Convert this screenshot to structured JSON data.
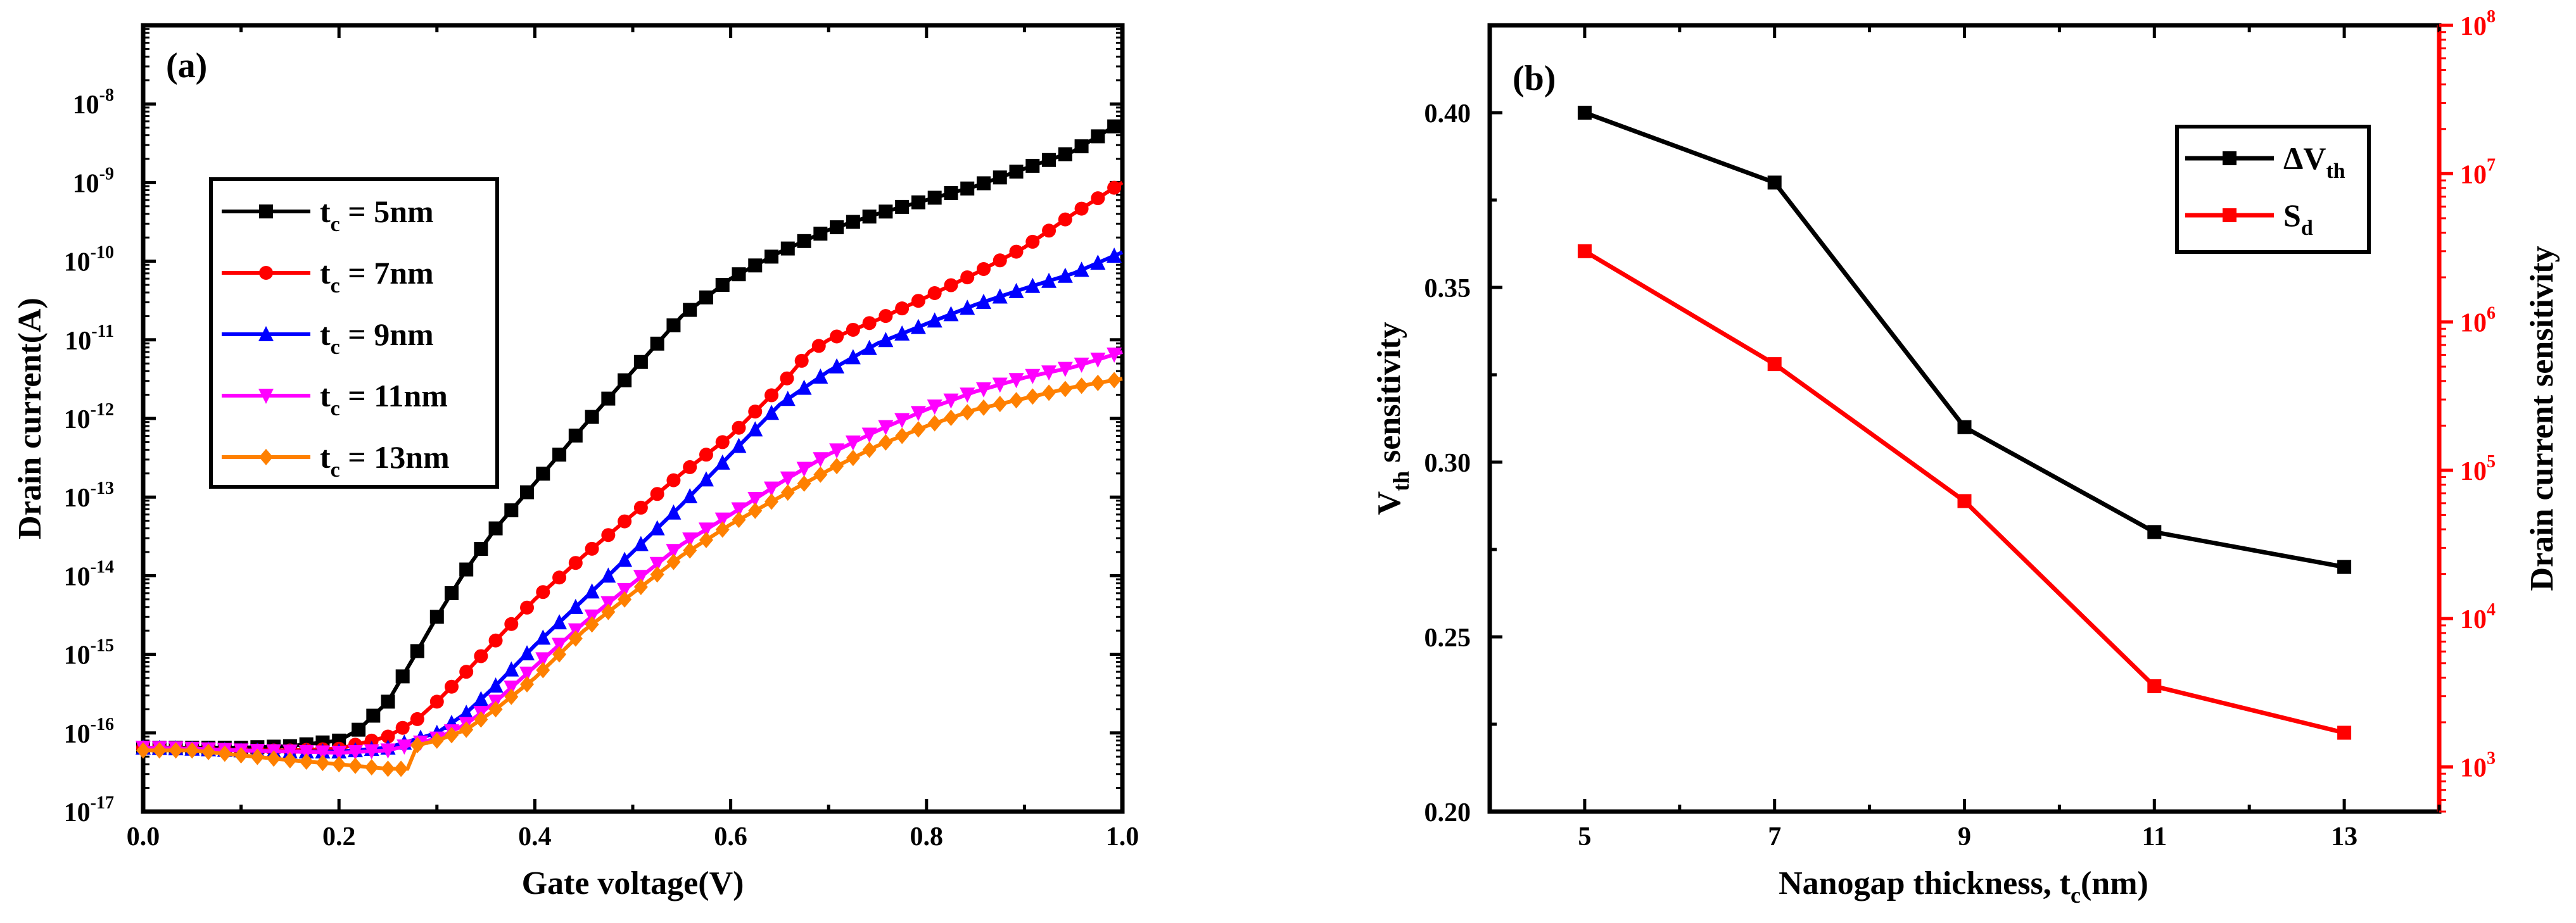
{
  "chart_data": [
    {
      "type": "line",
      "panel_label": "(a)",
      "xlabel": "Gate voltage(V)",
      "ylabel": "Drain current(A)",
      "yscale": "log",
      "xlim": [
        0.0,
        1.0
      ],
      "ylim": [
        1e-17,
        1e-07
      ],
      "xticks": [
        "0.0",
        "0.2",
        "0.4",
        "0.6",
        "0.8",
        "1.0"
      ],
      "yticks": [
        {
          "base": "10",
          "exp": "-17"
        },
        {
          "base": "10",
          "exp": "-16"
        },
        {
          "base": "10",
          "exp": "-15"
        },
        {
          "base": "10",
          "exp": "-14"
        },
        {
          "base": "10",
          "exp": "-13"
        },
        {
          "base": "10",
          "exp": "-12"
        },
        {
          "base": "10",
          "exp": "-11"
        },
        {
          "base": "10",
          "exp": "-10"
        },
        {
          "base": "10",
          "exp": "-9"
        },
        {
          "base": "10",
          "exp": "-8"
        }
      ],
      "legend": {
        "placement": "center-left"
      },
      "series": [
        {
          "name": "tc = 5nm",
          "legend_main": "t",
          "legend_sub": "c",
          "legend_rest": " = 5nm",
          "color": "#000000",
          "marker": "square",
          "x": [
            0.0,
            0.05,
            0.1,
            0.15,
            0.2,
            0.22,
            0.25,
            0.28,
            0.3,
            0.33,
            0.36,
            0.4,
            0.45,
            0.5,
            0.55,
            0.6,
            0.65,
            0.7,
            0.75,
            0.8,
            0.85,
            0.9,
            0.95,
            1.0
          ],
          "y": [
            6.5e-17,
            6.5e-17,
            6.5e-17,
            6.8e-17,
            8e-17,
            1.1e-16,
            2.5e-16,
            1.1e-15,
            3e-15,
            1.2e-14,
            4e-14,
            1.5e-13,
            8e-13,
            4e-12,
            2e-11,
            6e-11,
            1.3e-10,
            2.5e-10,
            4e-10,
            6e-10,
            9e-10,
            1.5e-09,
            2.5e-09,
            6e-09
          ]
        },
        {
          "name": "tc = 7nm",
          "legend_main": "t",
          "legend_sub": "c",
          "legend_rest": " = 7nm",
          "color": "#ff0000",
          "marker": "circle",
          "x": [
            0.0,
            0.05,
            0.1,
            0.15,
            0.2,
            0.25,
            0.28,
            0.3,
            0.33,
            0.36,
            0.4,
            0.45,
            0.5,
            0.55,
            0.6,
            0.65,
            0.68,
            0.7,
            0.75,
            0.8,
            0.85,
            0.9,
            0.95,
            1.0
          ],
          "y": [
            6.5e-17,
            6.3e-17,
            6e-17,
            6e-17,
            6.3e-17,
            9e-17,
            1.5e-16,
            2.5e-16,
            6e-16,
            1.5e-15,
            5e-15,
            1.8e-14,
            6e-14,
            2e-13,
            6e-13,
            2.5e-12,
            7e-12,
            1e-11,
            1.8e-11,
            3.5e-11,
            7e-11,
            1.5e-10,
            4e-10,
            1e-09
          ]
        },
        {
          "name": "tc = 9nm",
          "legend_main": "t",
          "legend_sub": "c",
          "legend_rest": " = 9nm",
          "color": "#0000ff",
          "marker": "triangle-up",
          "x": [
            0.0,
            0.05,
            0.1,
            0.15,
            0.2,
            0.25,
            0.3,
            0.33,
            0.36,
            0.4,
            0.45,
            0.5,
            0.55,
            0.6,
            0.65,
            0.7,
            0.75,
            0.8,
            0.85,
            0.9,
            0.95,
            1.0
          ],
          "y": [
            6.5e-17,
            6.3e-17,
            6e-17,
            5.8e-17,
            5.8e-17,
            6.5e-17,
            1e-16,
            1.8e-16,
            4e-16,
            1.3e-15,
            5e-15,
            2e-14,
            8e-14,
            3.5e-13,
            1.5e-12,
            4e-12,
            9e-12,
            1.6e-11,
            2.8e-11,
            4.5e-11,
            7e-11,
            1.3e-10
          ]
        },
        {
          "name": "tc = 11nm",
          "legend_main": "t",
          "legend_sub": "c",
          "legend_rest": " = 11nm",
          "color": "#ff00ff",
          "marker": "triangle-down",
          "x": [
            0.0,
            0.05,
            0.1,
            0.15,
            0.2,
            0.25,
            0.3,
            0.33,
            0.36,
            0.4,
            0.45,
            0.5,
            0.55,
            0.6,
            0.65,
            0.7,
            0.75,
            0.8,
            0.85,
            0.9,
            0.95,
            1.0
          ],
          "y": [
            6.5e-17,
            6.3e-17,
            6e-17,
            5.8e-17,
            5.6e-17,
            6e-17,
            8.5e-17,
            1.3e-16,
            2.5e-16,
            7e-16,
            2.5e-15,
            8e-15,
            2.5e-14,
            6e-14,
            1.5e-13,
            3.5e-13,
            7e-13,
            1.3e-12,
            2.2e-12,
            3.3e-12,
            4.5e-12,
            7e-12
          ]
        },
        {
          "name": "tc = 13nm",
          "legend_main": "t",
          "legend_sub": "c",
          "legend_rest": " = 13nm",
          "color": "#ff8000",
          "marker": "diamond",
          "x": [
            0.0,
            0.05,
            0.1,
            0.15,
            0.2,
            0.25,
            0.27,
            0.28,
            0.3,
            0.33,
            0.36,
            0.4,
            0.45,
            0.5,
            0.55,
            0.6,
            0.65,
            0.7,
            0.75,
            0.8,
            0.85,
            0.9,
            0.95,
            1.0
          ],
          "y": [
            6e-17,
            6e-17,
            5.2e-17,
            4.5e-17,
            4e-17,
            3.5e-17,
            3.5e-17,
            7e-17,
            8e-17,
            1.1e-16,
            2e-16,
            5e-16,
            2e-15,
            6e-15,
            1.8e-14,
            4.5e-14,
            1e-13,
            2.2e-13,
            4.5e-13,
            8e-13,
            1.3e-12,
            1.8e-12,
            2.5e-12,
            3.2e-12
          ]
        }
      ]
    },
    {
      "type": "line",
      "panel_label": "(b)",
      "xlabel": "Nanogap thickness, tc(nm)",
      "xlabel_main": "Nanogap thickness, t",
      "xlabel_sub": "c",
      "xlabel_rest": "(nm)",
      "ylabel": "Vth sensitivity",
      "ylabel_main": "V",
      "ylabel_sub": "th",
      "ylabel_rest": " sensitivity",
      "y2label": "Drain current sensitivity",
      "xlim": [
        4,
        14
      ],
      "ylim": [
        0.2,
        0.425
      ],
      "y2scale": "log",
      "y2lim": [
        500,
        100000000.0
      ],
      "xticks": [
        "5",
        "7",
        "9",
        "11",
        "13"
      ],
      "yticks": [
        "0.20",
        "0.25",
        "0.30",
        "0.35",
        "0.40"
      ],
      "y2ticks": [
        {
          "base": "10",
          "exp": "3"
        },
        {
          "base": "10",
          "exp": "4"
        },
        {
          "base": "10",
          "exp": "5"
        },
        {
          "base": "10",
          "exp": "6"
        },
        {
          "base": "10",
          "exp": "7"
        },
        {
          "base": "10",
          "exp": "8"
        }
      ],
      "legend": {
        "placement": "top-right"
      },
      "series": [
        {
          "name": "ΔVth",
          "legend_main": "ΔV",
          "legend_sub": "th",
          "axis": "left",
          "color": "#000000",
          "marker": "square",
          "x": [
            5,
            7,
            9,
            11,
            13
          ],
          "y": [
            0.4,
            0.38,
            0.31,
            0.28,
            0.27
          ]
        },
        {
          "name": "Sd",
          "legend_main": "S",
          "legend_sub": "d",
          "axis": "right",
          "color": "#ff0000",
          "marker": "square",
          "x": [
            5,
            7,
            9,
            11,
            13
          ],
          "y": [
            3000000.0,
            520000.0,
            62000.0,
            3500.0,
            1700.0
          ]
        }
      ]
    }
  ]
}
